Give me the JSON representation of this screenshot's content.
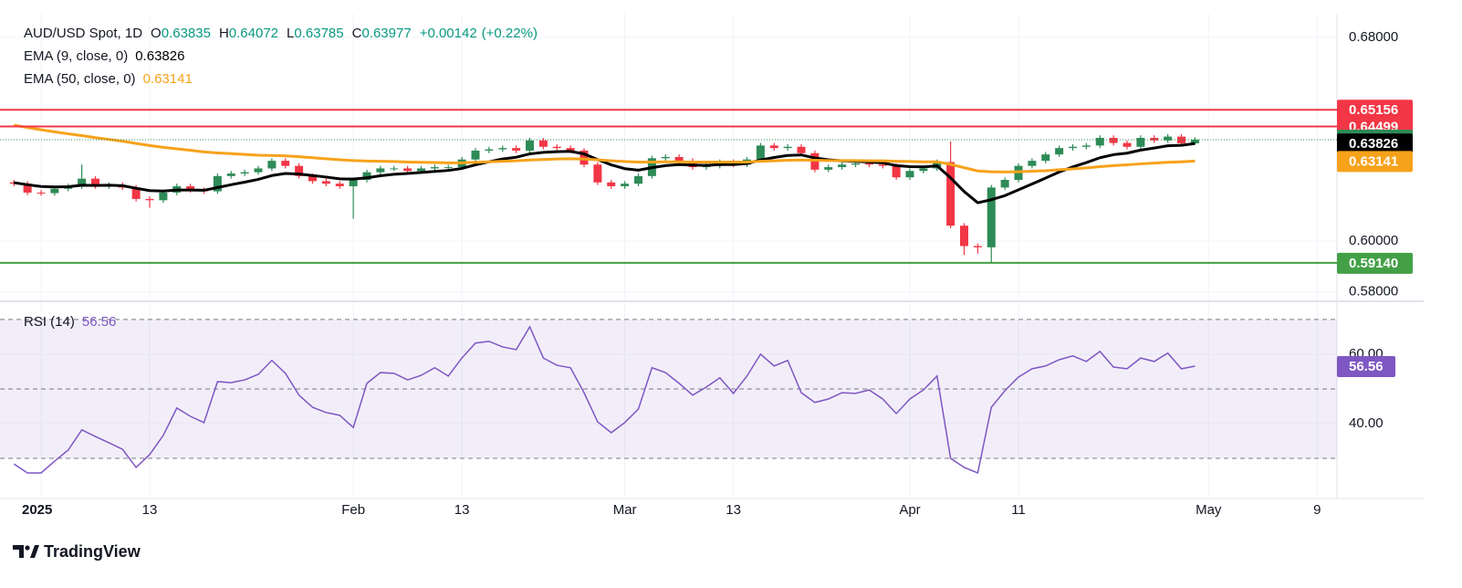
{
  "chart_data": {
    "type": "candlestick",
    "title": "AUD/USD Spot, 1D",
    "ohlc_keys": {
      "open": "O",
      "high": "H",
      "low": "L",
      "close": "C"
    },
    "change": "+0.00142",
    "change_pct": "(+0.22%)",
    "up_color": "#2e8b57",
    "down_color": "#f23645",
    "categories": [
      null,
      null,
      "2025",
      null,
      null,
      null,
      null,
      null,
      null,
      null,
      "13",
      null,
      null,
      null,
      null,
      null,
      null,
      null,
      null,
      null,
      null,
      null,
      null,
      null,
      null,
      "Feb",
      null,
      null,
      null,
      null,
      null,
      null,
      null,
      "13",
      null,
      null,
      null,
      null,
      null,
      null,
      null,
      null,
      null,
      null,
      null,
      "Mar",
      null,
      null,
      null,
      null,
      null,
      null,
      null,
      "13",
      null,
      null,
      null,
      null,
      null,
      null,
      null,
      null,
      null,
      null,
      null,
      null,
      "Apr",
      null,
      null,
      null,
      null,
      null,
      null,
      null,
      "11",
      null,
      null,
      null,
      null,
      null,
      null,
      null,
      null,
      null,
      null,
      null,
      null,
      null,
      "May",
      null,
      null,
      null,
      null,
      null,
      null,
      null,
      "9",
      null
    ],
    "open": [
      0.623,
      0.6225,
      0.619,
      0.6188,
      0.6205,
      0.6215,
      0.6245,
      0.6215,
      0.622,
      0.621,
      0.6165,
      0.616,
      0.619,
      0.6215,
      0.62,
      0.6195,
      0.6255,
      0.6265,
      0.627,
      0.6285,
      0.6315,
      0.6295,
      0.6255,
      0.6235,
      0.6225,
      0.6215,
      0.624,
      0.627,
      0.6285,
      0.6285,
      0.6275,
      0.6285,
      0.629,
      0.629,
      0.632,
      0.6355,
      0.636,
      0.6365,
      0.6355,
      0.6395,
      0.637,
      0.6365,
      0.6355,
      0.63,
      0.623,
      0.6215,
      0.6225,
      0.6255,
      0.6325,
      0.633,
      0.6315,
      0.629,
      0.6295,
      0.631,
      0.63,
      0.632,
      0.6375,
      0.6365,
      0.637,
      0.6345,
      0.628,
      0.629,
      0.63,
      0.6305,
      0.63,
      0.6295,
      0.625,
      0.6275,
      0.6285,
      0.631,
      0.606,
      0.598,
      0.5975,
      0.621,
      0.624,
      0.6295,
      0.6315,
      0.634,
      0.6365,
      0.637,
      0.6375,
      0.6405,
      0.6385,
      0.637,
      0.6405,
      0.6395,
      0.641,
      0.63835,
      null,
      null,
      null,
      null,
      null,
      null,
      null,
      null,
      null,
      null
    ],
    "high": [
      0.624,
      0.6235,
      0.62,
      0.6215,
      0.6225,
      0.63,
      0.6255,
      0.623,
      0.623,
      0.622,
      0.6175,
      0.62,
      0.6225,
      0.6225,
      0.621,
      0.6265,
      0.6275,
      0.628,
      0.6295,
      0.6325,
      0.6325,
      0.6305,
      0.6265,
      0.6245,
      0.6235,
      0.625,
      0.628,
      0.6295,
      0.6295,
      0.6295,
      0.6295,
      0.63,
      0.63,
      0.633,
      0.6365,
      0.637,
      0.6375,
      0.6375,
      0.6405,
      0.6405,
      0.638,
      0.6375,
      0.6365,
      0.631,
      0.624,
      0.6235,
      0.6265,
      0.6335,
      0.634,
      0.634,
      0.6325,
      0.6305,
      0.632,
      0.632,
      0.633,
      0.6385,
      0.6385,
      0.638,
      0.638,
      0.6355,
      0.63,
      0.631,
      0.6315,
      0.6315,
      0.631,
      0.6305,
      0.6285,
      0.6295,
      0.632,
      0.6391,
      0.607,
      0.599,
      0.622,
      0.625,
      0.6305,
      0.6325,
      0.635,
      0.6375,
      0.638,
      0.6385,
      0.6415,
      0.6415,
      0.6395,
      0.6415,
      0.6415,
      0.642,
      0.642,
      0.64072,
      null,
      null,
      null,
      null,
      null,
      null,
      null,
      null,
      null,
      null
    ],
    "low": [
      0.6215,
      0.618,
      0.6178,
      0.6178,
      0.6195,
      0.6205,
      0.6205,
      0.6205,
      0.62,
      0.6155,
      0.613,
      0.615,
      0.618,
      0.619,
      0.6185,
      0.6185,
      0.6245,
      0.6255,
      0.626,
      0.6275,
      0.6285,
      0.6245,
      0.6225,
      0.6215,
      0.6205,
      0.6087,
      0.623,
      0.626,
      0.6275,
      0.6265,
      0.6265,
      0.6275,
      0.628,
      0.628,
      0.631,
      0.6345,
      0.635,
      0.6345,
      0.6345,
      0.636,
      0.6355,
      0.6345,
      0.629,
      0.622,
      0.6205,
      0.6205,
      0.6215,
      0.6245,
      0.6315,
      0.6305,
      0.628,
      0.628,
      0.6285,
      0.629,
      0.629,
      0.631,
      0.6355,
      0.6355,
      0.6335,
      0.627,
      0.627,
      0.628,
      0.629,
      0.629,
      0.6285,
      0.624,
      0.624,
      0.6265,
      0.6275,
      0.605,
      0.5945,
      0.595,
      0.5914,
      0.62,
      0.623,
      0.6285,
      0.6305,
      0.633,
      0.6355,
      0.636,
      0.6365,
      0.6375,
      0.636,
      0.636,
      0.6385,
      0.6385,
      0.6374,
      0.63785,
      null,
      null,
      null,
      null,
      null,
      null,
      null,
      null,
      null,
      null
    ],
    "close": [
      0.6225,
      0.619,
      0.6188,
      0.6205,
      0.6215,
      0.6245,
      0.6215,
      0.622,
      0.621,
      0.6165,
      0.616,
      0.619,
      0.6215,
      0.62,
      0.6195,
      0.6255,
      0.6265,
      0.627,
      0.6285,
      0.6315,
      0.6295,
      0.6255,
      0.6235,
      0.6225,
      0.6215,
      0.624,
      0.627,
      0.6285,
      0.6285,
      0.6275,
      0.6285,
      0.629,
      0.629,
      0.632,
      0.6355,
      0.636,
      0.6365,
      0.6355,
      0.6395,
      0.637,
      0.6365,
      0.6355,
      0.63,
      0.623,
      0.6215,
      0.6225,
      0.6255,
      0.6325,
      0.633,
      0.6315,
      0.629,
      0.6295,
      0.631,
      0.63,
      0.632,
      0.6375,
      0.6365,
      0.637,
      0.6345,
      0.628,
      0.629,
      0.63,
      0.6305,
      0.63,
      0.6295,
      0.625,
      0.6275,
      0.6285,
      0.631,
      0.606,
      0.598,
      0.5975,
      0.621,
      0.624,
      0.6295,
      0.6315,
      0.634,
      0.6365,
      0.637,
      0.6375,
      0.6405,
      0.6385,
      0.637,
      0.6405,
      0.6395,
      0.641,
      0.6384,
      0.63977,
      null,
      null,
      null,
      null,
      null,
      null,
      null,
      null,
      null,
      null
    ],
    "last_price_color": "#2e8b57",
    "series": [
      {
        "name": "EMA (9, close, 0)",
        "color": "#000000",
        "values": [
          0.6229,
          0.6221,
          0.6214,
          0.6212,
          0.6213,
          0.6219,
          0.6218,
          0.6219,
          0.6217,
          0.6207,
          0.6198,
          0.6196,
          0.62,
          0.62,
          0.6199,
          0.621,
          0.6221,
          0.6231,
          0.6242,
          0.6257,
          0.6265,
          0.6263,
          0.6257,
          0.6251,
          0.6244,
          0.6243,
          0.6248,
          0.6256,
          0.6262,
          0.6265,
          0.6269,
          0.6273,
          0.6277,
          0.6285,
          0.6299,
          0.6311,
          0.6322,
          0.6329,
          0.6342,
          0.6348,
          0.6351,
          0.6352,
          0.6342,
          0.632,
          0.6299,
          0.6284,
          0.6278,
          0.6288,
          0.6296,
          0.63,
          0.6298,
          0.6297,
          0.63,
          0.63,
          0.6304,
          0.6318,
          0.6328,
          0.6336,
          0.6338,
          0.6326,
          0.6319,
          0.6315,
          0.6313,
          0.631,
          0.6307,
          0.6296,
          0.6292,
          0.6291,
          0.6295,
          0.6248,
          0.6194,
          0.615,
          0.6162,
          0.6178,
          0.6201,
          0.6224,
          0.6247,
          0.6271,
          0.6291,
          0.6308,
          0.6327,
          0.6339,
          0.6345,
          0.6357,
          0.6365,
          0.6374,
          0.6376,
          0.63826,
          null,
          null,
          null,
          null,
          null,
          null,
          null,
          null,
          null,
          null
        ]
      },
      {
        "name": "EMA (50, close, 0)",
        "color": "#f7a21b",
        "values": [
          0.6455,
          0.6446,
          0.6437,
          0.6429,
          0.6421,
          0.6414,
          0.6406,
          0.6399,
          0.6392,
          0.6383,
          0.6375,
          0.6368,
          0.6362,
          0.6356,
          0.635,
          0.6346,
          0.6343,
          0.634,
          0.6337,
          0.6336,
          0.6334,
          0.6331,
          0.6327,
          0.6323,
          0.6319,
          0.6316,
          0.6314,
          0.6313,
          0.6312,
          0.631,
          0.6309,
          0.6308,
          0.6307,
          0.6307,
          0.6309,
          0.6311,
          0.6313,
          0.6315,
          0.6318,
          0.632,
          0.6322,
          0.6323,
          0.6322,
          0.6319,
          0.6315,
          0.6312,
          0.631,
          0.631,
          0.6311,
          0.6311,
          0.631,
          0.631,
          0.631,
          0.631,
          0.631,
          0.6313,
          0.6315,
          0.6317,
          0.6318,
          0.6317,
          0.6316,
          0.6316,
          0.6316,
          0.6315,
          0.6315,
          0.6313,
          0.6312,
          0.6311,
          0.6311,
          0.6301,
          0.6288,
          0.6275,
          0.6272,
          0.6271,
          0.6272,
          0.6274,
          0.6276,
          0.628,
          0.6283,
          0.6287,
          0.6292,
          0.6296,
          0.6299,
          0.6303,
          0.6306,
          0.6309,
          0.6311,
          0.63141,
          null,
          null,
          null,
          null,
          null,
          null,
          null,
          null,
          null,
          null
        ]
      }
    ],
    "levels": [
      {
        "value": 0.65156,
        "label": "0.65156",
        "color": "#f23645"
      },
      {
        "value": 0.64499,
        "label": "0.64499",
        "color": "#f23645"
      },
      {
        "value": 0.5914,
        "label": "0.59140",
        "color": "#43a047"
      }
    ],
    "ylim": [
      0.577,
      0.6893
    ],
    "yticks": [
      {
        "value": 0.68,
        "label": "0.68000"
      },
      {
        "value": 0.6,
        "label": "0.60000"
      },
      {
        "value": 0.58,
        "label": "0.58000"
      }
    ],
    "grid": true,
    "rsi": {
      "name": "RSI (14)",
      "color": "#7e57c2",
      "values": [
        28.4,
        25.8,
        25.8,
        29.2,
        32.4,
        38.2,
        36.3,
        34.5,
        32.6,
        27.4,
        31.1,
        36.6,
        44.5,
        42.1,
        40.3,
        52.1,
        51.8,
        52.6,
        54.2,
        58.2,
        54.5,
        48.2,
        44.7,
        43.2,
        42.4,
        38.9,
        51.6,
        54.7,
        54.5,
        52.6,
        53.9,
        56.1,
        53.7,
        58.9,
        63.2,
        63.7,
        62.1,
        61.3,
        67.9,
        58.9,
        56.8,
        56.1,
        48.9,
        40.5,
        37.4,
        40.3,
        44.2,
        56.1,
        54.7,
        51.6,
        48.2,
        50.5,
        53.2,
        48.7,
        53.7,
        60.0,
        56.6,
        58.2,
        48.9,
        46.1,
        47.1,
        48.9,
        48.7,
        49.7,
        47.1,
        42.9,
        47.1,
        49.7,
        53.7,
        30.0,
        27.4,
        25.8,
        44.7,
        49.5,
        53.4,
        55.8,
        56.6,
        58.4,
        59.5,
        57.9,
        60.8,
        56.3,
        55.8,
        58.9,
        57.9,
        60.3,
        55.8,
        56.56,
        null,
        null,
        null,
        null,
        null,
        null,
        null,
        null,
        null,
        null
      ],
      "ylim": [
        18.7,
        74.7
      ],
      "yticks": [
        {
          "value": 60,
          "label": "60.00"
        },
        {
          "value": 40,
          "label": "40.00"
        }
      ],
      "bands": [
        70,
        50,
        30
      ]
    },
    "brand": "TradingView"
  }
}
